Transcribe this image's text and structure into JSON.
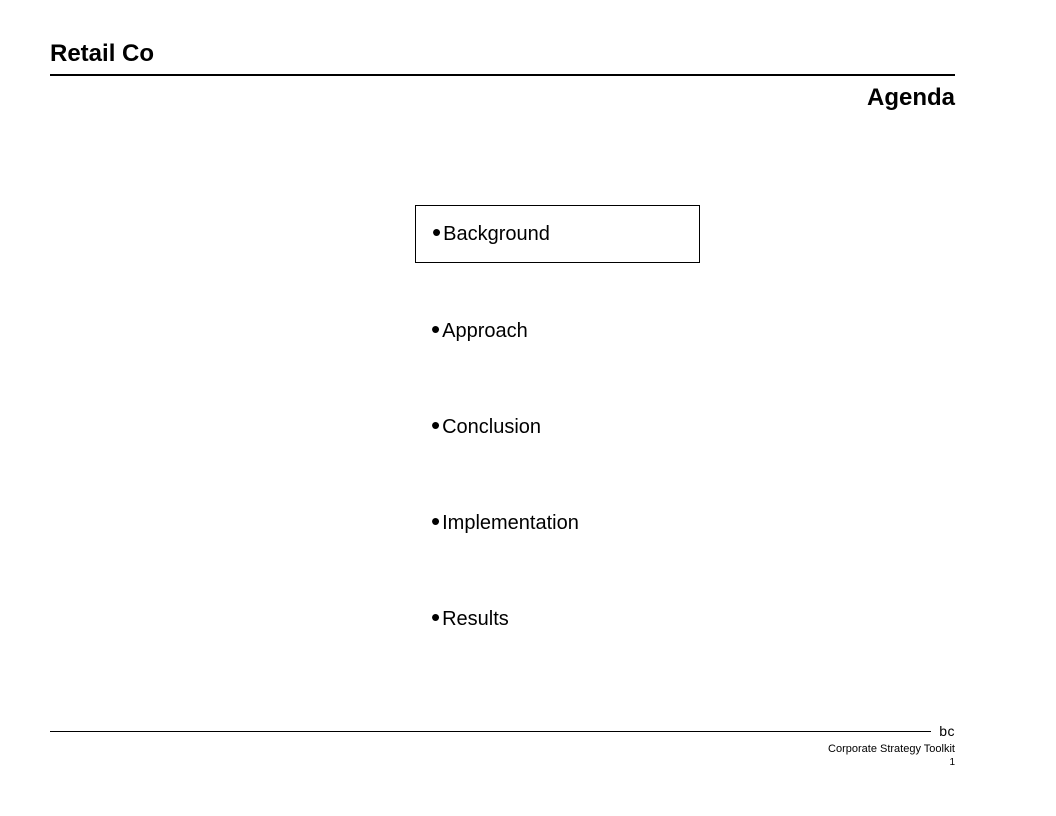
{
  "header": {
    "title": "Retail Co",
    "subtitle": "Agenda"
  },
  "agenda": {
    "items": [
      {
        "label": "Background",
        "highlighted": true
      },
      {
        "label": "Approach",
        "highlighted": false
      },
      {
        "label": "Conclusion",
        "highlighted": false
      },
      {
        "label": "Implementation",
        "highlighted": false
      },
      {
        "label": "Results",
        "highlighted": false
      }
    ],
    "bullet_char": "•",
    "item_fontsize": 20,
    "box_border_color": "#000000"
  },
  "footer": {
    "logo_text": "bc",
    "meta_text": "Corporate Strategy Toolkit",
    "page_number": "1"
  },
  "colors": {
    "background": "#ffffff",
    "text": "#000000",
    "rule": "#000000"
  }
}
